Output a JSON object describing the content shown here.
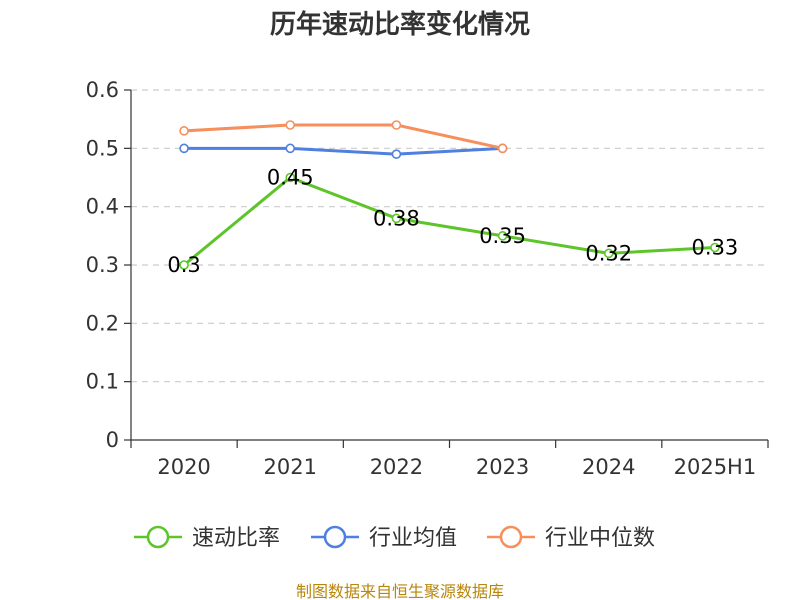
{
  "chart_data": {
    "type": "line",
    "title": "历年速动比率变化情况",
    "categories": [
      "2020",
      "2021",
      "2022",
      "2023",
      "2024",
      "2025H1"
    ],
    "ylim": [
      0,
      0.6
    ],
    "yticks": [
      "0",
      "0.1",
      "0.2",
      "0.3",
      "0.4",
      "0.5",
      "0.6"
    ],
    "grid": true,
    "legend_position": "bottom",
    "series": [
      {
        "name": "速动比率",
        "color": "#5dc42a",
        "values": [
          0.3,
          0.45,
          0.38,
          0.35,
          0.32,
          0.33
        ],
        "labels": [
          "0.3",
          "0.45",
          "0.38",
          "0.35",
          "0.32",
          "0.33"
        ]
      },
      {
        "name": "行业均值",
        "color": "#4f7fe0",
        "values": [
          0.5,
          0.5,
          0.49,
          0.5,
          null,
          null
        ]
      },
      {
        "name": "行业中位数",
        "color": "#f68f5c",
        "values": [
          0.53,
          0.54,
          0.54,
          0.5,
          null,
          null
        ]
      }
    ]
  },
  "source_note": "制图数据来自恒生聚源数据库"
}
